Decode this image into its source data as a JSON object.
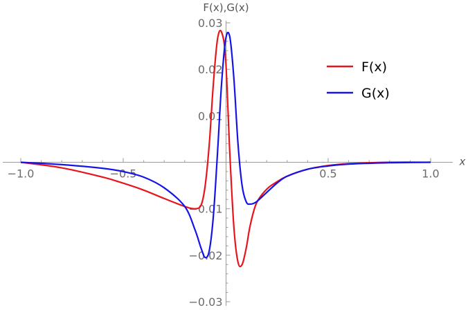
{
  "chart_data": {
    "type": "line",
    "title": "",
    "xlabel": "x",
    "ylabel": "F(x),G(x)",
    "xlim": [
      -1.0,
      1.0
    ],
    "ylim": [
      -0.03,
      0.03
    ],
    "x_ticks": [
      -1.0,
      -0.5,
      0.5,
      1.0
    ],
    "x_tick_labels": [
      "−1.0",
      "−0.5",
      "0.5",
      "1.0"
    ],
    "y_ticks": [
      -0.03,
      -0.02,
      -0.01,
      0.01,
      0.02,
      0.03
    ],
    "y_tick_labels": [
      "−0.03",
      "−0.02",
      "−0.01",
      "0.01",
      "0.02",
      "0.03"
    ],
    "grid": false,
    "legend": "top-right",
    "series": [
      {
        "name": "F(x)",
        "color": "#e8141b",
        "x": [
          -1.0,
          -0.8,
          -0.6,
          -0.5,
          -0.4,
          -0.3,
          -0.2,
          -0.15,
          -0.12,
          -0.1,
          -0.08,
          -0.06,
          -0.04,
          -0.02,
          0.0,
          0.02,
          0.04,
          0.06,
          0.08,
          0.1,
          0.12,
          0.15,
          0.2,
          0.25,
          0.3,
          0.4,
          0.5,
          0.6,
          0.8,
          1.0
        ],
        "y": [
          0.0,
          -0.0012,
          -0.0032,
          -0.0045,
          -0.006,
          -0.0078,
          -0.0095,
          -0.01,
          -0.0092,
          -0.005,
          0.004,
          0.017,
          0.0265,
          0.028,
          0.022,
          0.002,
          -0.014,
          -0.0215,
          -0.022,
          -0.0185,
          -0.0135,
          -0.0088,
          -0.0058,
          -0.0042,
          -0.003,
          -0.0015,
          -0.0007,
          -0.0003,
          0.0,
          0.0
        ]
      },
      {
        "name": "G(x)",
        "color": "#1414e6",
        "x": [
          -1.0,
          -0.8,
          -0.6,
          -0.5,
          -0.4,
          -0.3,
          -0.2,
          -0.15,
          -0.12,
          -0.1,
          -0.08,
          -0.06,
          -0.04,
          -0.02,
          0.0,
          0.02,
          0.04,
          0.06,
          0.08,
          0.1,
          0.12,
          0.15,
          0.2,
          0.25,
          0.3,
          0.4,
          0.5,
          0.6,
          0.8,
          1.0
        ],
        "y": [
          0.0,
          -0.0005,
          -0.0013,
          -0.002,
          -0.0032,
          -0.0055,
          -0.0095,
          -0.0145,
          -0.0185,
          -0.0205,
          -0.019,
          -0.0115,
          0.002,
          0.017,
          0.0265,
          0.027,
          0.018,
          0.004,
          -0.005,
          -0.0085,
          -0.009,
          -0.0085,
          -0.0065,
          -0.0045,
          -0.003,
          -0.0015,
          -0.0008,
          -0.0004,
          -0.0001,
          0.0
        ]
      }
    ]
  }
}
